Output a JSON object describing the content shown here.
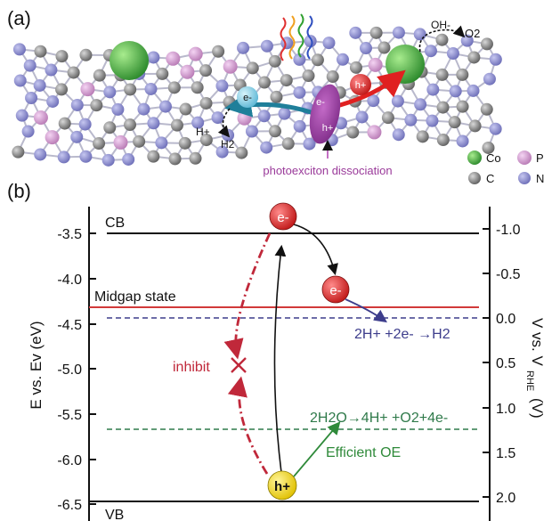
{
  "panel_a": {
    "label": "(a)",
    "legend": [
      {
        "symbol": "Co",
        "color": "#44b045"
      },
      {
        "symbol": "P",
        "color": "#d79ad4"
      },
      {
        "symbol": "C",
        "color": "#7a7a7a"
      },
      {
        "symbol": "N",
        "color": "#8a8bd0"
      }
    ],
    "annotations": {
      "electron": "e-",
      "hole": "h+",
      "proton": "H+",
      "hydrogen": "H2",
      "hydroxide": "OH-",
      "oxygen": "O2",
      "exciton_e": "e-",
      "exciton_h": "h+",
      "dissociation": "photoexciton dissociation"
    }
  },
  "panel_b": {
    "label": "(b)",
    "left_axis": {
      "label": "E vs. Ev (eV)",
      "ticks": [
        "-3.5",
        "-4.0",
        "-4.5",
        "-5.0",
        "-5.5",
        "-6.0",
        "-6.5"
      ]
    },
    "right_axis": {
      "label": "V vs. V",
      "label_sub": "RHE",
      "label_unit": "(V)",
      "ticks": [
        "-1.0",
        "-0.5",
        "0.0",
        "0.5",
        "1.0",
        "1.5",
        "2.0"
      ]
    },
    "levels": {
      "cb": "CB",
      "vb": "VB",
      "midgap": "Midgap state"
    },
    "particles": {
      "e_cb": "e-",
      "e_mid": "e-",
      "h_vb": "h+"
    },
    "reactions": {
      "her": "2H+ +2e- →H2",
      "oer": "2H2O→4H+ +O2+4e-"
    },
    "labels": {
      "inhibit": "inhibit",
      "efficient": "Efficient OE"
    },
    "colors": {
      "midgap": "#d23a3a",
      "her_line": "#3d3d8c",
      "oer_line": "#2f7a4a",
      "inhibit": "#c0283a",
      "efficient": "#2f8a3a"
    }
  }
}
